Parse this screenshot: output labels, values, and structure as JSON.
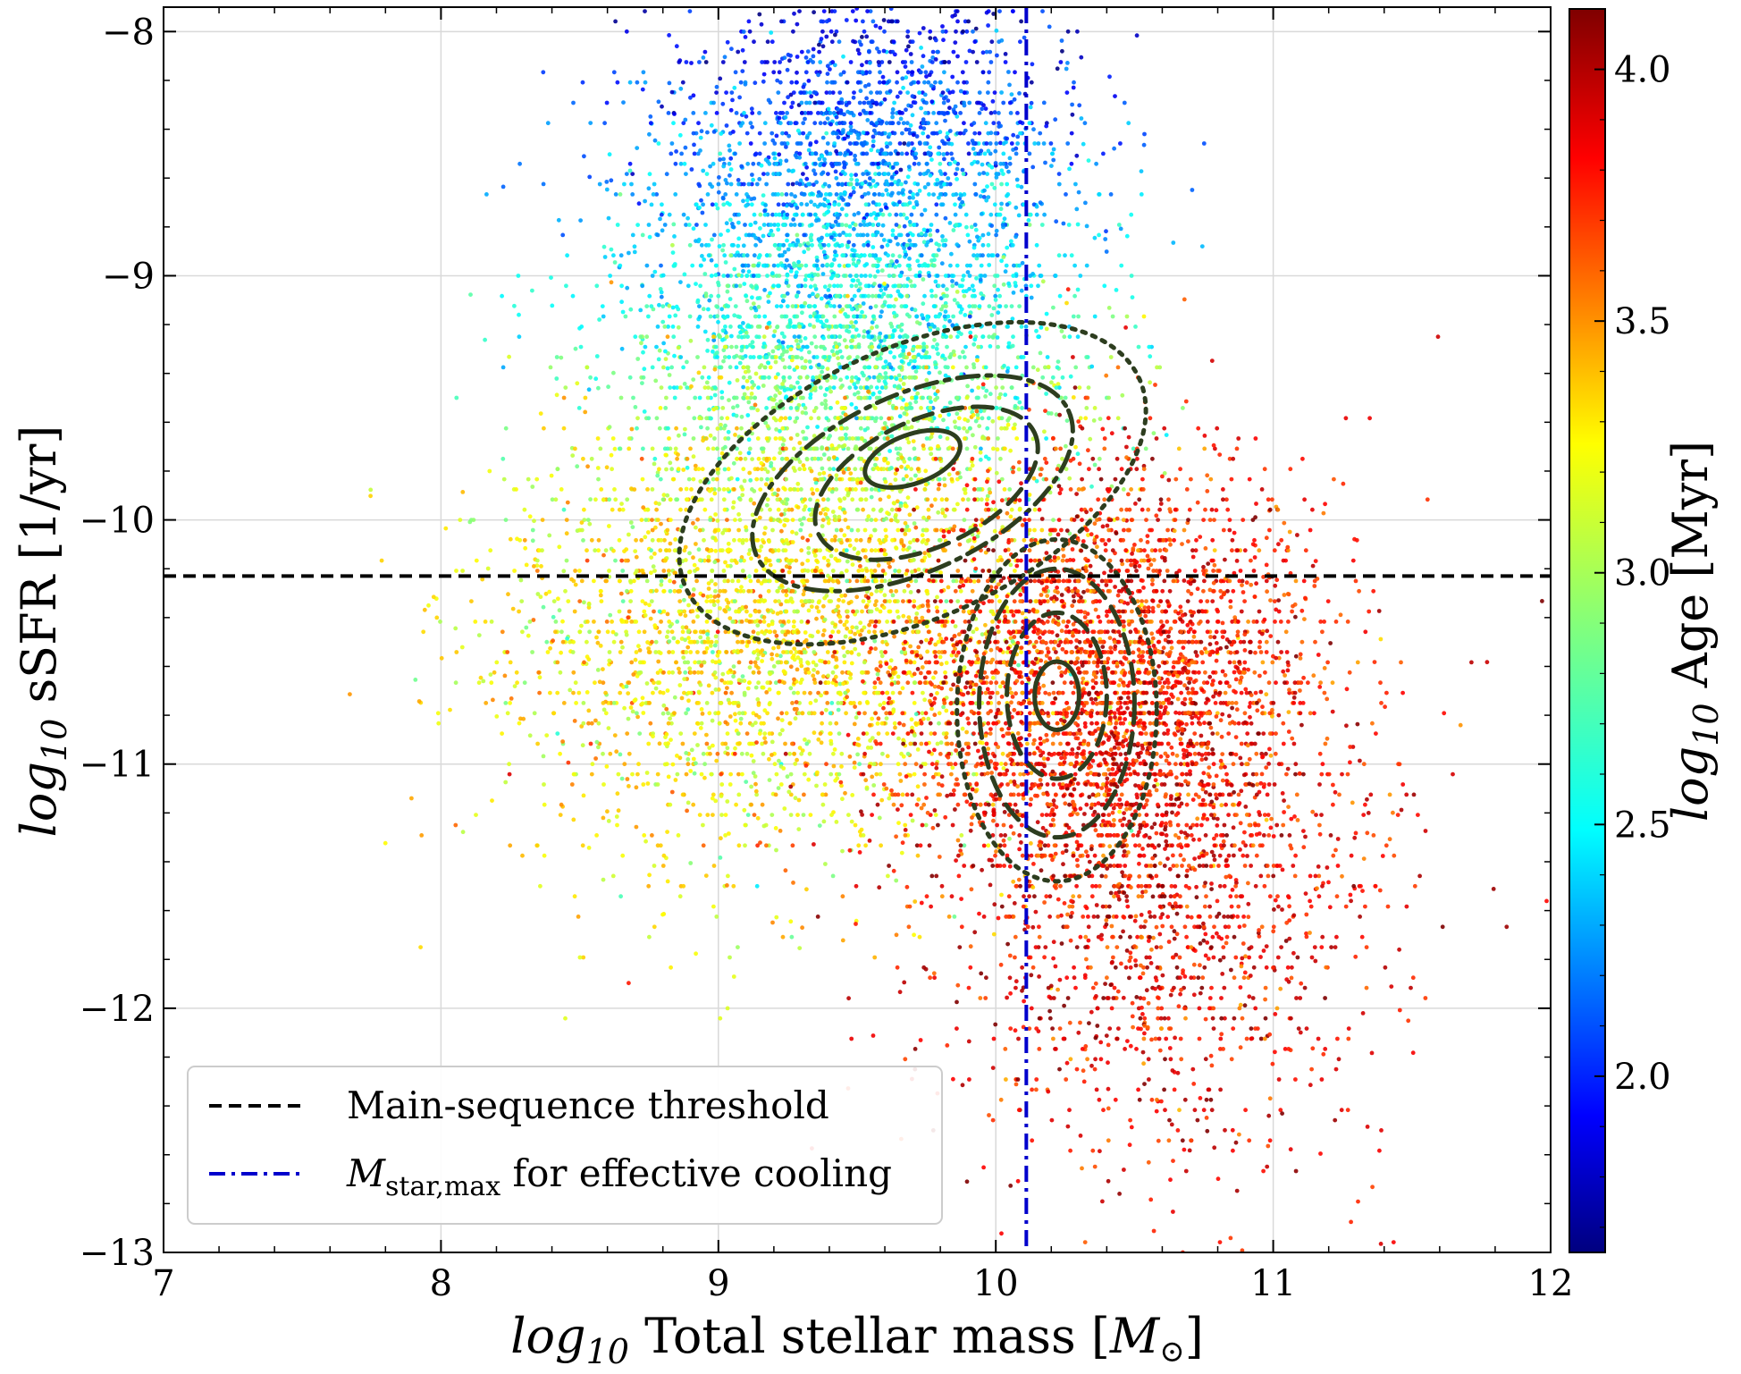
{
  "chart_data": {
    "type": "scatter",
    "x_axis": {
      "label_prefix": "log",
      "label_sub": "10",
      "label_main": " Total stellar mass [",
      "label_unit": "M",
      "label_unit_sub": "⊙",
      "label_close": "]",
      "range": [
        7,
        12
      ],
      "ticks": [
        7,
        8,
        9,
        10,
        11,
        12
      ],
      "tick_labels": [
        "7",
        "8",
        "9",
        "10",
        "11",
        "12"
      ]
    },
    "y_axis": {
      "label_prefix": "log",
      "label_sub": "10",
      "label_main": " sSFR [1/yr]",
      "range": [
        -13,
        -7.9
      ],
      "ticks": [
        -13,
        -12,
        -11,
        -10,
        -9,
        -8
      ],
      "tick_labels": [
        "−13",
        "−12",
        "−11",
        "−10",
        "−9",
        "−8"
      ]
    },
    "colorbar": {
      "label_prefix": "log",
      "label_sub": "10",
      "label_main": " Age [Myr]",
      "range": [
        1.65,
        4.12
      ],
      "ticks": [
        2.0,
        2.5,
        3.0,
        3.5,
        4.0
      ],
      "tick_labels": [
        "2.0",
        "2.5",
        "3.0",
        "3.5",
        "4.0"
      ],
      "colormap": "jet"
    },
    "grid": true,
    "reference_lines": [
      {
        "orientation": "horizontal",
        "value": -10.23,
        "style": "dashed",
        "color": "#000000"
      },
      {
        "orientation": "vertical",
        "value": 10.11,
        "style": "dashdot",
        "color": "#0000cc"
      }
    ],
    "populations": [
      {
        "center": [
          9.45,
          -9.25
        ],
        "spread": [
          0.42,
          0.55
        ],
        "age_mean": 2.7,
        "age_slope_y": -0.55,
        "count": 3600
      },
      {
        "center": [
          9.6,
          -8.4
        ],
        "spread": [
          0.35,
          0.3
        ],
        "age_mean": 2.2,
        "age_slope_y": -0.6,
        "count": 1100
      },
      {
        "center": [
          9.2,
          -10.5
        ],
        "spread": [
          0.5,
          0.45
        ],
        "age_mean": 3.2,
        "age_slope_y": 0.0,
        "count": 2600
      },
      {
        "center": [
          10.4,
          -10.7
        ],
        "spread": [
          0.38,
          0.45
        ],
        "age_mean": 3.75,
        "age_slope_y": 0.0,
        "count": 3400
      },
      {
        "center": [
          10.6,
          -11.6
        ],
        "spread": [
          0.42,
          0.55
        ],
        "age_mean": 3.85,
        "age_slope_y": 0.0,
        "count": 1300
      }
    ],
    "contours": [
      {
        "cx": 9.7,
        "cy": -9.85,
        "rx": 0.9,
        "ry": 0.55,
        "rotation": -25,
        "style": "dotted"
      },
      {
        "cx": 9.7,
        "cy": -9.85,
        "rx": 0.62,
        "ry": 0.36,
        "rotation": -25,
        "style": "dashdot"
      },
      {
        "cx": 9.75,
        "cy": -9.85,
        "rx": 0.43,
        "ry": 0.26,
        "rotation": -25,
        "style": "dashed"
      },
      {
        "cx": 9.7,
        "cy": -9.75,
        "rx": 0.18,
        "ry": 0.1,
        "rotation": -20,
        "style": "solid"
      },
      {
        "cx": 10.22,
        "cy": -10.78,
        "rx": 0.36,
        "ry": 0.7,
        "rotation": 0,
        "style": "dotted"
      },
      {
        "cx": 10.22,
        "cy": -10.75,
        "rx": 0.28,
        "ry": 0.55,
        "rotation": 0,
        "style": "dashed"
      },
      {
        "cx": 10.22,
        "cy": -10.72,
        "rx": 0.18,
        "ry": 0.34,
        "rotation": 0,
        "style": "dashed"
      },
      {
        "cx": 10.22,
        "cy": -10.72,
        "rx": 0.08,
        "ry": 0.14,
        "rotation": 0,
        "style": "solid"
      }
    ],
    "contour_color": "#2d3d1f",
    "legend": {
      "placement": "lower-left",
      "entries": [
        {
          "label": "Main-sequence threshold",
          "style": "dashed",
          "color": "#000000"
        },
        {
          "label_math": "M",
          "label_sub": "star,max",
          "label_rest": " for effective cooling",
          "style": "dashdot",
          "color": "#0000cc"
        }
      ]
    }
  }
}
